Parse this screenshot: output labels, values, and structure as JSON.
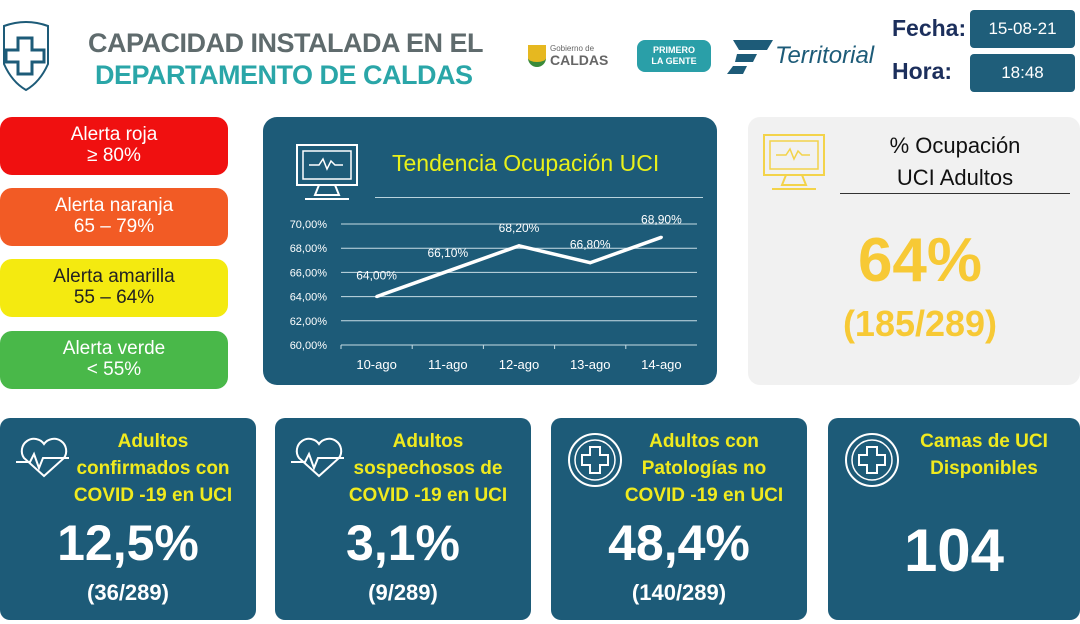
{
  "header": {
    "title_line1": "CAPACIDAD INSTALADA EN EL",
    "title_line2": "DEPARTAMENTO DE CALDAS",
    "logos": [
      "Gobierno de CALDAS",
      "PRIMERO LA GENTE",
      "Territorial"
    ],
    "fecha_label": "Fecha:",
    "fecha_value": "15-08-21",
    "hora_label": "Hora:",
    "hora_value": "18:48"
  },
  "alerts": [
    {
      "name": "Alerta roja",
      "range": "≥ 80%",
      "color": "#f01010"
    },
    {
      "name": "Alerta naranja",
      "range": "65 – 79%",
      "color": "#f25b25"
    },
    {
      "name": "Alerta amarilla",
      "range": "55 – 64%",
      "color": "#f4ea10",
      "text": "#222"
    },
    {
      "name": "Alerta verde",
      "range": "< 55%",
      "color": "#49b849"
    }
  ],
  "chart_data": {
    "type": "line",
    "title": "Tendencia Ocupación UCI",
    "categories": [
      "10-ago",
      "11-ago",
      "12-ago",
      "13-ago",
      "14-ago"
    ],
    "values": [
      64.0,
      66.1,
      68.2,
      66.8,
      68.9
    ],
    "data_labels": [
      "64,00%",
      "66,10%",
      "68,20%",
      "66,80%",
      "68,90%"
    ],
    "ylim": [
      60,
      70
    ],
    "yticks": [
      "60,00%",
      "62,00%",
      "64,00%",
      "66,00%",
      "68,00%",
      "70,00%"
    ],
    "grid": true
  },
  "ocupacion": {
    "title_line1": "% Ocupación",
    "title_line2": "UCI Adultos",
    "value": "64%",
    "detail": "(185/289)"
  },
  "cards": [
    {
      "title": "Adultos confirmados con COVID -19 en UCI",
      "value": "12,5%",
      "detail": "(36/289)",
      "icon": "heartbeat-icon"
    },
    {
      "title": "Adultos sospechosos de COVID -19 en UCI",
      "value": "3,1%",
      "detail": "(9/289)",
      "icon": "heartbeat-icon"
    },
    {
      "title": "Adultos con Patologías no COVID -19 en UCI",
      "value": "48,4%",
      "detail": "(140/289)",
      "icon": "medical-cross-icon"
    },
    {
      "title": "Camas de UCI Disponibles",
      "value": "104",
      "detail": "",
      "icon": "medical-cross-icon"
    }
  ]
}
